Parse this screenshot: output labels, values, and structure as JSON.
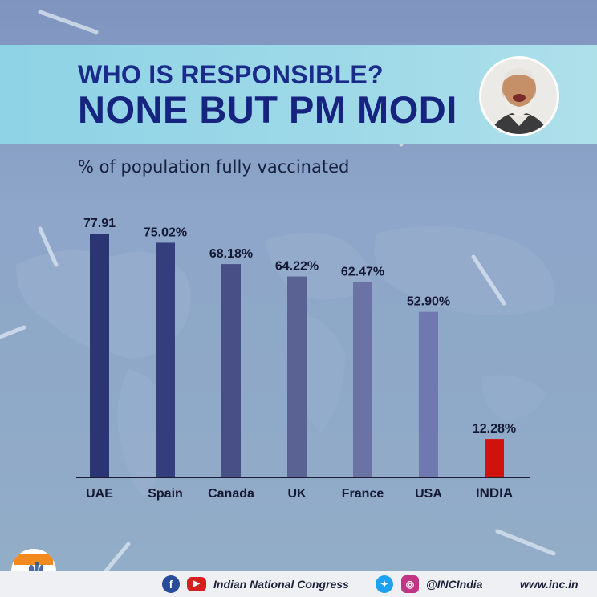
{
  "header": {
    "line1": "WHO IS RESPONSIBLE?",
    "line2": "NONE BUT PM MODI"
  },
  "chart_data": {
    "type": "bar",
    "title": "% of population fully vaccinated",
    "categories": [
      "UAE",
      "Spain",
      "Canada",
      "UK",
      "France",
      "USA",
      "INDIA"
    ],
    "values": [
      77.91,
      75.02,
      68.18,
      64.22,
      62.47,
      52.9,
      12.28
    ],
    "value_labels": [
      "77.91",
      "75.02%",
      "68.18%",
      "64.22%",
      "62.47%",
      "52.90%",
      "12.28%"
    ],
    "colors": [
      "#2c3573",
      "#353e7c",
      "#474f86",
      "#5a6294",
      "#6a73a3",
      "#7078b0",
      "#d0120c"
    ],
    "ylim": [
      0,
      100
    ],
    "highlight_category": "INDIA"
  },
  "footer": {
    "org_name": "Indian National Congress",
    "handle": "@INCIndia",
    "website": "www.inc.in",
    "icons": [
      "facebook-icon",
      "youtube-icon",
      "twitter-icon",
      "instagram-icon"
    ]
  }
}
